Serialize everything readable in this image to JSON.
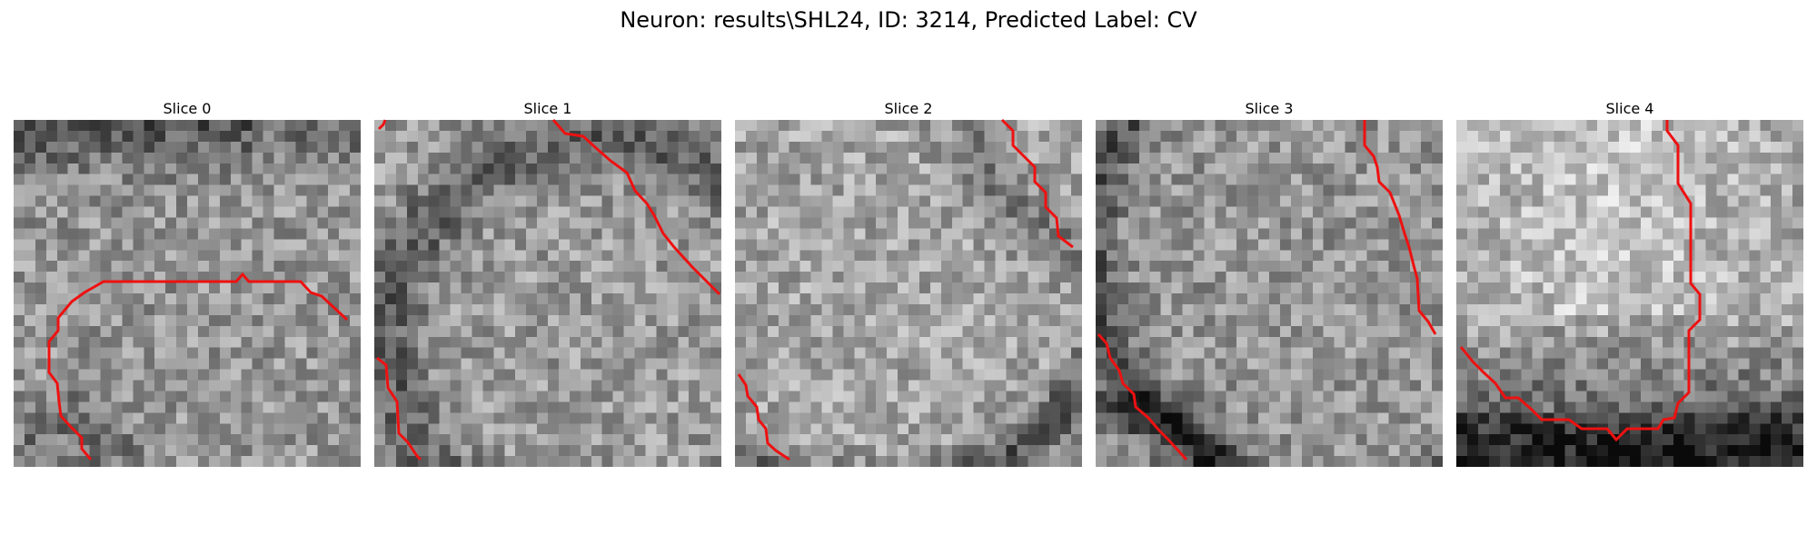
{
  "title": "Neuron: results\\SHL24, ID: 3214, Predicted Label: CV",
  "contour_color": "#ee1111",
  "slices": [
    {
      "label": "Slice 0"
    },
    {
      "label": "Slice 1"
    },
    {
      "label": "Slice 2"
    },
    {
      "label": "Slice 3"
    },
    {
      "label": "Slice 4"
    }
  ]
}
